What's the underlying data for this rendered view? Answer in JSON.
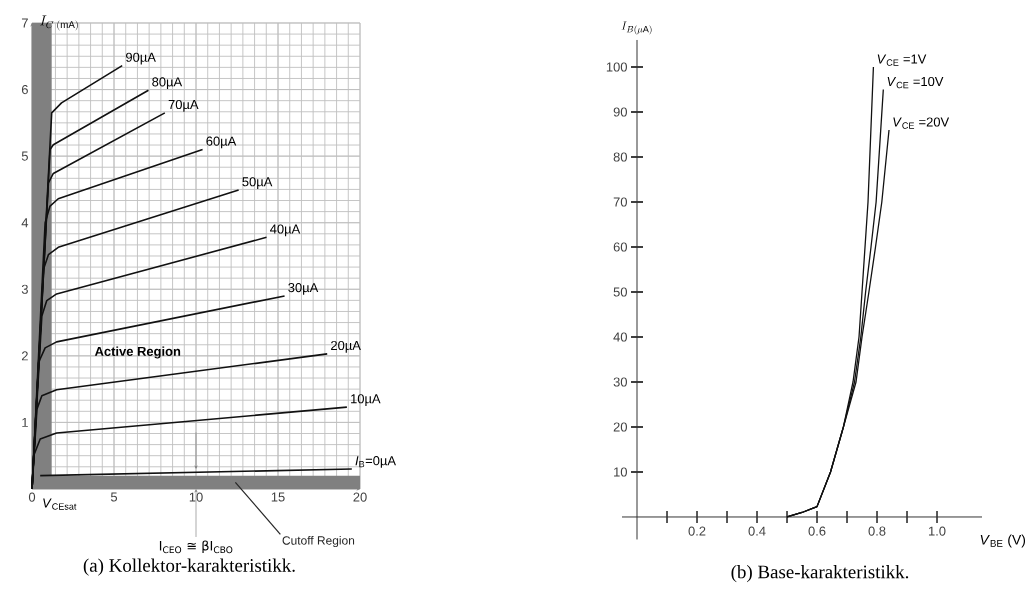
{
  "chart_data": [
    {
      "type": "line",
      "ylabel": "I_{C\\;(\\mathrm{mA})}",
      "xlim": [
        0,
        20
      ],
      "ylim": [
        0,
        7
      ],
      "xticks": [
        0,
        5,
        10,
        15,
        20
      ],
      "yticks": [
        1,
        2,
        3,
        4,
        5,
        6,
        7
      ],
      "grid": true,
      "series": [
        {
          "name": "*I*$_{B}$=0µA",
          "color": "#111111",
          "x": [
            0.5,
            19.5
          ],
          "values": [
            0.2,
            0.3
          ]
        },
        {
          "name": "10µA",
          "color": "#111111",
          "x": [
            0,
            0.1,
            0.5,
            1.5,
            19.2
          ],
          "values": [
            0,
            0.5,
            0.75,
            0.84,
            1.23
          ]
        },
        {
          "name": "20µA",
          "color": "#111111",
          "x": [
            0,
            0.3,
            0.6,
            1.5,
            18
          ],
          "values": [
            0,
            1.2,
            1.4,
            1.49,
            2.03
          ]
        },
        {
          "name": "30µA",
          "color": "#111111",
          "x": [
            0,
            0.4,
            0.8,
            1.5,
            15.4
          ],
          "values": [
            0,
            1.9,
            2.12,
            2.21,
            2.9
          ]
        },
        {
          "name": "40µA",
          "color": "#111111",
          "x": [
            0,
            0.6,
            0.9,
            1.5,
            14.3
          ],
          "values": [
            0,
            2.6,
            2.83,
            2.93,
            3.78
          ]
        },
        {
          "name": "50µA",
          "color": "#111111",
          "x": [
            0,
            0.7,
            1.0,
            1.6,
            12.6
          ],
          "values": [
            0,
            3.3,
            3.52,
            3.63,
            4.49
          ]
        },
        {
          "name": "60µA",
          "color": "#111111",
          "x": [
            0,
            0.8,
            1.1,
            1.6,
            10.4
          ],
          "values": [
            0,
            4.0,
            4.25,
            4.36,
            5.1
          ]
        },
        {
          "name": "70µA",
          "color": "#111111",
          "x": [
            0,
            1.0,
            1.3,
            8.1
          ],
          "values": [
            0,
            4.6,
            4.74,
            5.65
          ]
        },
        {
          "name": "80µA",
          "color": "#111111",
          "x": [
            0,
            1.1,
            1.3,
            7.1
          ],
          "values": [
            0,
            5.1,
            5.17,
            5.99
          ]
        },
        {
          "name": "90µA",
          "color": "#111111",
          "x": [
            0,
            1.2,
            1.8,
            5.5
          ],
          "values": [
            0,
            5.65,
            5.8,
            6.36
          ]
        }
      ],
      "bands": [
        {
          "axis": "x",
          "from": 0,
          "to": 1.2,
          "color": "#808080"
        },
        {
          "axis": "y",
          "from": 0,
          "to": 0.2,
          "label": "Cutoff Region",
          "color": "#808080"
        }
      ],
      "annotations": [
        "Active Region",
        "*V*$_{CEsat}$",
        "I$_{CEO}$ ≅ βI$_{CBO}$",
        "(a) Kollektor-karakteristikk."
      ]
    },
    {
      "type": "line",
      "xlabel": "*V*$_{BE}$ (V)",
      "ylabel": "I_{B(\\mu\\mathrm{A})}",
      "xlim": [
        -0.05,
        1.15
      ],
      "ylim": [
        -5,
        106
      ],
      "xticks": [
        {
          "value": 0.1,
          "label": null
        },
        0.2,
        {
          "value": 0.3,
          "label": null
        },
        0.4,
        {
          "value": 0.5,
          "label": null
        },
        0.6,
        {
          "value": 0.7,
          "label": null
        },
        0.8,
        {
          "value": 0.9,
          "label": null
        },
        {
          "value": 1,
          "label": "1.0"
        }
      ],
      "yticks": [
        10,
        20,
        30,
        40,
        50,
        60,
        70,
        80,
        90,
        100
      ],
      "series": [
        {
          "name": "*V*$_{CE}$ =1V",
          "color": "#111111",
          "x": [
            0.5,
            0.55,
            0.6,
            0.645,
            0.688,
            0.72,
            0.74,
            0.75,
            0.76,
            0.77,
            0.788
          ],
          "values": [
            0,
            1,
            2.3,
            10,
            20,
            30,
            40,
            50,
            60,
            70,
            100
          ]
        },
        {
          "name": "*V*$_{CE}$ =10V",
          "color": "#111111",
          "x": [
            0.5,
            0.55,
            0.6,
            0.645,
            0.688,
            0.725,
            0.746,
            0.762,
            0.78,
            0.797,
            0.821
          ],
          "values": [
            0,
            1,
            2.3,
            10,
            20,
            30,
            40,
            50,
            60,
            70,
            95
          ]
        },
        {
          "name": "*V*$_{CE}$ =20V",
          "color": "#111111",
          "x": [
            0.5,
            0.55,
            0.6,
            0.645,
            0.688,
            0.73,
            0.75,
            0.773,
            0.795,
            0.816,
            0.84
          ],
          "values": [
            0,
            1,
            2.3,
            10,
            20,
            30,
            40,
            50,
            60,
            70,
            86
          ]
        }
      ],
      "annotations": [
        "(b) Base-karakteristikk."
      ]
    }
  ]
}
